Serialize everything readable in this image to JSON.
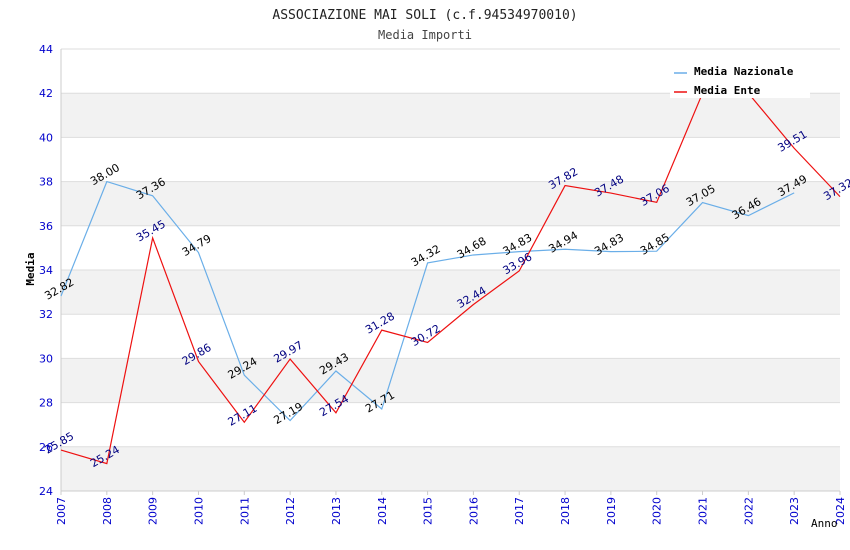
{
  "colors": {
    "background": "#ffffff",
    "band": "#f2f2f2",
    "grid": "#dddddd",
    "axis": "#cccccc",
    "tick_text": "#0000cc",
    "national": "#6aaee8",
    "ente": "#ee1111",
    "national_label": "#000000",
    "ente_label": "#000080"
  },
  "chart_data": {
    "type": "line",
    "title": "ASSOCIAZIONE MAI SOLI (c.f.94534970010)",
    "subtitle": "Media Importi",
    "xlabel": "Anno",
    "ylabel": "Media",
    "ylim": [
      24,
      44
    ],
    "yticks": [
      "24",
      "26",
      "28",
      "30",
      "32",
      "34",
      "36",
      "38",
      "40",
      "42",
      "44"
    ],
    "grid": true,
    "legend_position": "top-right",
    "categories": [
      "2007",
      "2008",
      "2009",
      "2010",
      "2011",
      "2012",
      "2013",
      "2014",
      "2015",
      "2016",
      "2017",
      "2018",
      "2019",
      "2020",
      "2021",
      "2022",
      "2023",
      "2024"
    ],
    "series": [
      {
        "name": "Media Nazionale",
        "color": "#6aaee8",
        "values": [
          32.82,
          38.0,
          37.36,
          34.79,
          29.24,
          27.19,
          29.43,
          27.71,
          34.32,
          34.68,
          34.83,
          34.94,
          34.83,
          34.85,
          37.05,
          36.46,
          37.49,
          null
        ],
        "labels": [
          "32.82",
          "38.00",
          "37.36",
          "34.79",
          "29.24",
          "27.19",
          "29.43",
          "27.71",
          "34.32",
          "34.68",
          "34.83",
          "34.94",
          "34.83",
          "34.85",
          "37.05",
          "36.46",
          "37.49",
          ""
        ]
      },
      {
        "name": "Media Ente",
        "color": "#ee1111",
        "values": [
          25.85,
          25.24,
          35.45,
          29.86,
          27.11,
          29.97,
          27.54,
          31.28,
          30.72,
          32.44,
          33.96,
          37.82,
          37.48,
          37.06,
          42.0,
          42.0,
          39.51,
          37.32
        ],
        "labels": [
          "25.85",
          "25.24",
          "35.45",
          "29.86",
          "27.11",
          "29.97",
          "27.54",
          "31.28",
          "30.72",
          "32.44",
          "33.96",
          "37.82",
          "37.48",
          "37.06",
          "",
          "",
          "39.51",
          "37.32"
        ]
      }
    ]
  }
}
